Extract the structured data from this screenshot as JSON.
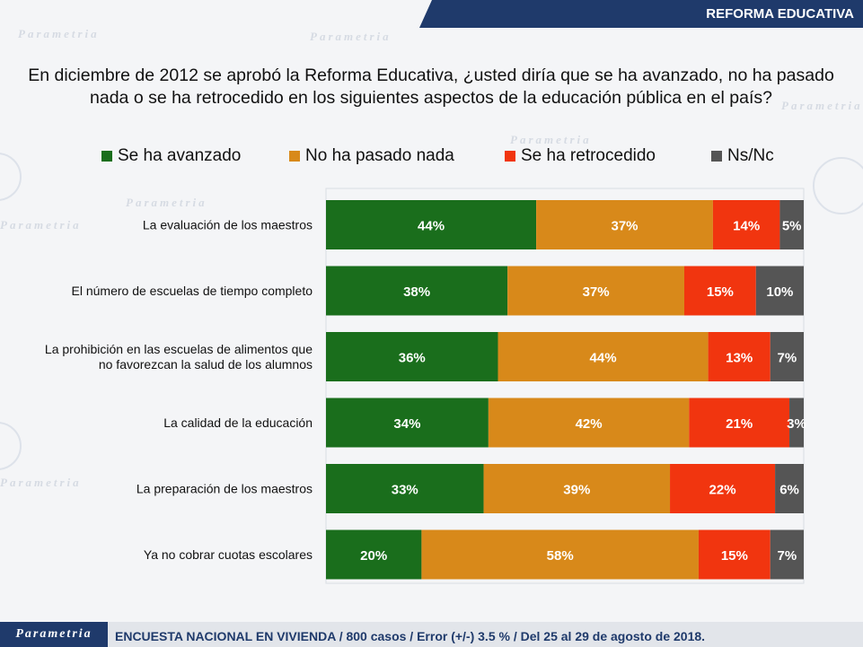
{
  "header": {
    "section_title": "REFORMA EDUCATIVA"
  },
  "question": "En diciembre de 2012 se aprobó la Reforma Educativa, ¿usted diría que se ha avanzado, no ha pasado nada o se ha retrocedido en los siguientes aspectos de la educación pública en el país?",
  "watermark": "Parametria",
  "footer": {
    "logo": "Parametria",
    "note": "ENCUESTA NACIONAL EN VIVIENDA / 800 casos / Error (+/-) 3.5 % / Del 25 al 29 de agosto de 2018."
  },
  "colors": {
    "header_bg": "#1f3a6b"
  },
  "chart_data": {
    "type": "bar",
    "orientation": "horizontal",
    "stacked": true,
    "xlim": [
      0,
      100
    ],
    "categories": [
      "La evaluación de los maestros",
      "El número de escuelas de tiempo completo",
      "La prohibición en las escuelas de alimentos que no favorezcan la salud de los alumnos",
      "La calidad de la educación",
      "La preparación de los maestros",
      "Ya no cobrar cuotas escolares"
    ],
    "category_lines": [
      [
        "La evaluación de los maestros"
      ],
      [
        "El número de escuelas de tiempo completo"
      ],
      [
        "La prohibición en las escuelas de alimentos que",
        "no favorezcan la salud de los alumnos"
      ],
      [
        "La calidad de la educación"
      ],
      [
        "La preparación de los maestros"
      ],
      [
        "Ya no cobrar cuotas escolares"
      ]
    ],
    "series": [
      {
        "name": "Se ha avanzado",
        "color": "#1a6e1c",
        "values": [
          44,
          38,
          36,
          34,
          33,
          20
        ]
      },
      {
        "name": "No ha pasado nada",
        "color": "#d8891a",
        "values": [
          37,
          37,
          44,
          42,
          39,
          58
        ]
      },
      {
        "name": "Se ha retrocedido",
        "color": "#f1350f",
        "values": [
          14,
          15,
          13,
          21,
          22,
          15
        ]
      },
      {
        "name": "Ns/Nc",
        "color": "#555555",
        "values": [
          5,
          10,
          7,
          3,
          6,
          7
        ]
      }
    ],
    "data_labels": [
      [
        "44%",
        "37%",
        "14%",
        "5%"
      ],
      [
        "38%",
        "37%",
        "15%",
        "10%"
      ],
      [
        "36%",
        "44%",
        "13%",
        "7%"
      ],
      [
        "34%",
        "42%",
        "21%",
        "3%"
      ],
      [
        "33%",
        "39%",
        "22%",
        "6%"
      ],
      [
        "20%",
        "58%",
        "15%",
        "7%"
      ]
    ],
    "legend_position": "top",
    "grid": false
  }
}
